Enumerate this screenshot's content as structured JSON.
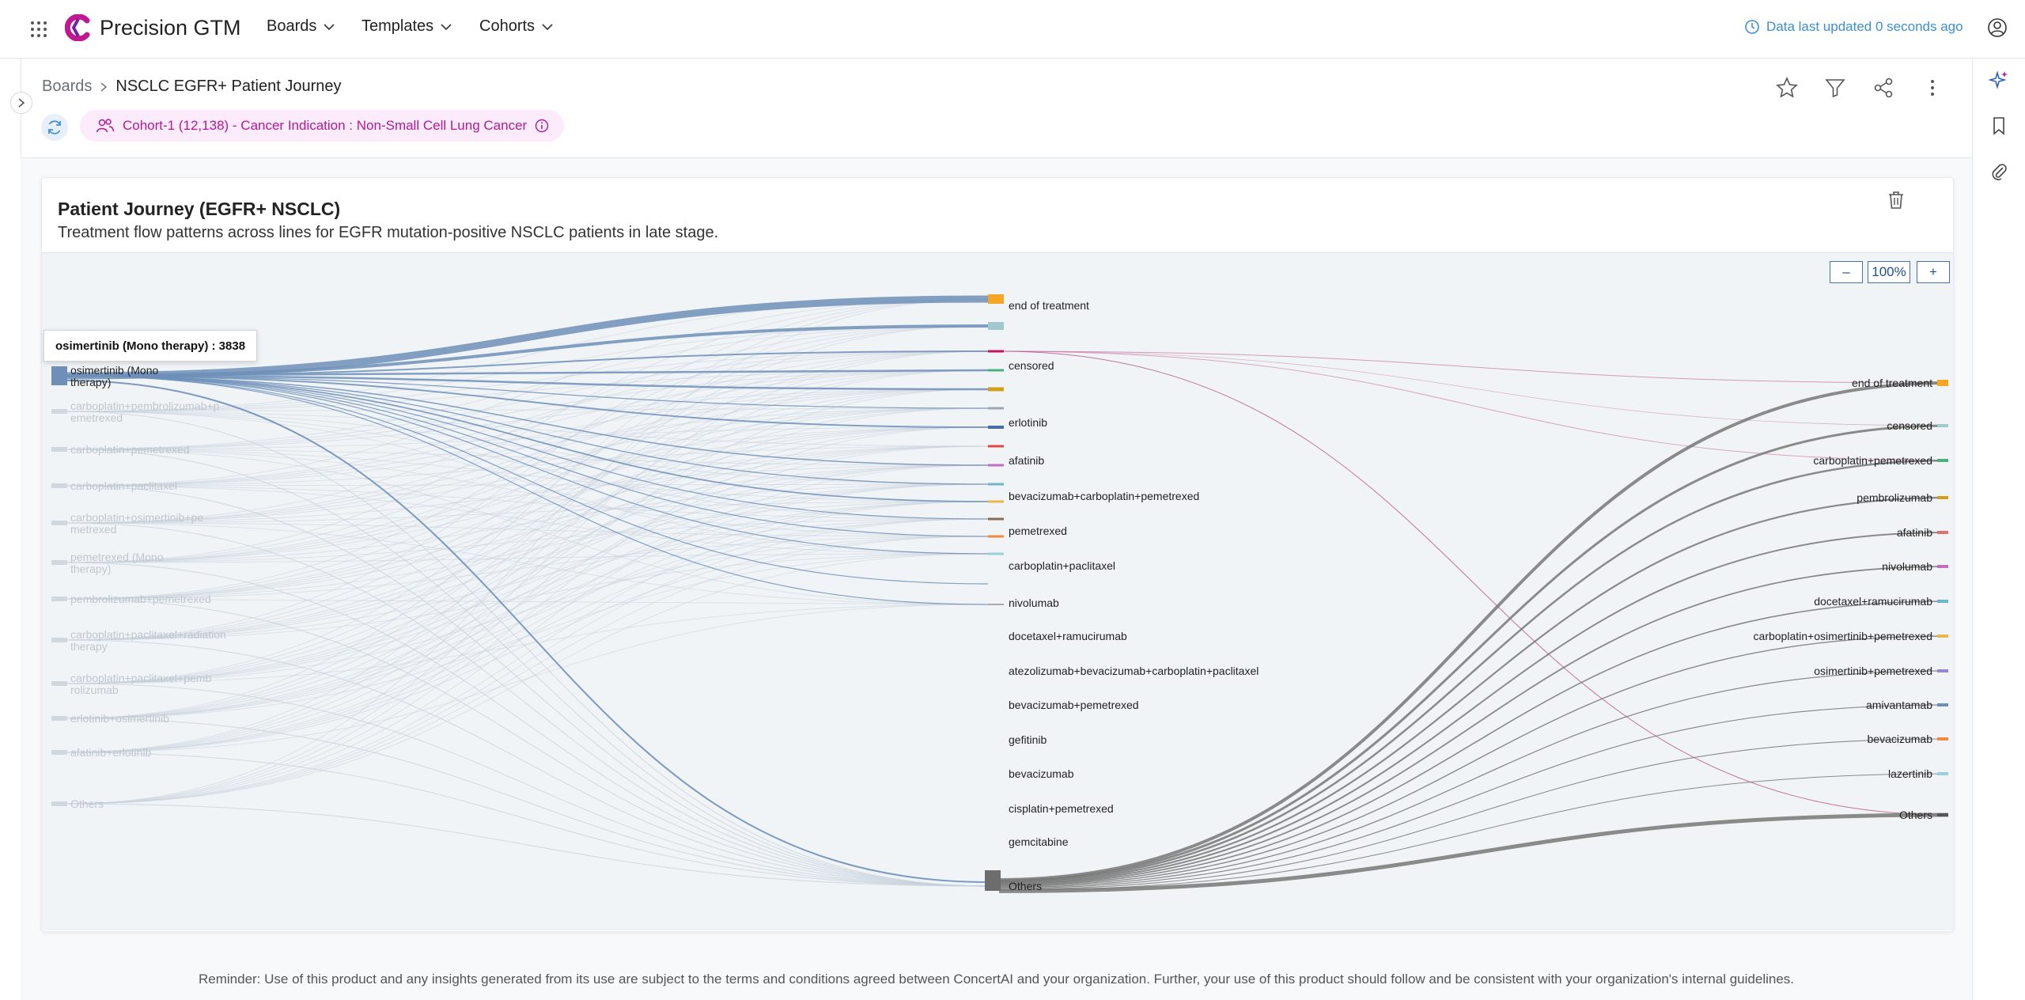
{
  "app": {
    "name": "Precision GTM"
  },
  "nav": [
    {
      "label": "Boards"
    },
    {
      "label": "Templates"
    },
    {
      "label": "Cohorts"
    }
  ],
  "status": {
    "updated": "Data last updated 0 seconds ago"
  },
  "breadcrumb": {
    "parent": "Boards",
    "current": "NSCLC EGFR+ Patient Journey"
  },
  "cohort": {
    "label": "Cohort-1 (12,138) - Cancer Indication : Non-Small Cell Lung Cancer"
  },
  "card": {
    "title": "Patient Journey (EGFR+ NSCLC)",
    "subtitle": "Treatment flow patterns across lines for EGFR mutation-positive NSCLC patients in late stage."
  },
  "zoom": {
    "minus": "–",
    "level": "100%",
    "plus": "+"
  },
  "tooltip": {
    "text": "osimertinib (Mono therapy) : 3838"
  },
  "chart_data": {
    "type": "sankey",
    "highlighted_node": "osimertinib (Mono therapy)",
    "highlighted_value": 3838,
    "column1": [
      "osimertinib (Mono therapy)",
      "carboplatin+pembrolizumab+pemetrexed",
      "carboplatin+pemetrexed",
      "carboplatin+paclitaxel",
      "carboplatin+osimertinib+pemetrexed",
      "pemetrexed (Mono therapy)",
      "pembrolizumab+pemetrexed",
      "carboplatin+paclitaxel+radiation therapy",
      "carboplatin+paclitaxel+pembrolizumab",
      "erlotinib+osimertinib",
      "afatinib+erlotinib",
      "Others"
    ],
    "column2": [
      "end of treatment",
      "censored",
      "erlotinib",
      "afatinib",
      "bevacizumab+carboplatin+pemetrexed",
      "pemetrexed",
      "carboplatin+paclitaxel",
      "nivolumab",
      "docetaxel+ramucirumab",
      "atezolizumab+bevacizumab+carboplatin+paclitaxel",
      "bevacizumab+pemetrexed",
      "gefitinib",
      "bevacizumab",
      "cisplatin+pemetrexed",
      "gemcitabine",
      "Others"
    ],
    "column3": [
      "end of treatment",
      "censored",
      "carboplatin+pemetrexed",
      "pembrolizumab",
      "afatinib",
      "nivolumab",
      "docetaxel+ramucirumab",
      "carboplatin+osimertinib+pemetrexed",
      "osimertinib+pemetrexed",
      "amivantamab",
      "bevacizumab",
      "lazertinib",
      "Others"
    ]
  },
  "colors": {
    "accent": "#b1199a",
    "link": "#3a8fd6",
    "flow": "#6f8fb8",
    "others": "#777777"
  },
  "footer": {
    "text": "Reminder: Use of this product and any insights generated from its use are subject to the terms and conditions agreed between ConcertAI and your organization. Further, your use of this product should follow and be consistent with your organization's internal guidelines."
  }
}
